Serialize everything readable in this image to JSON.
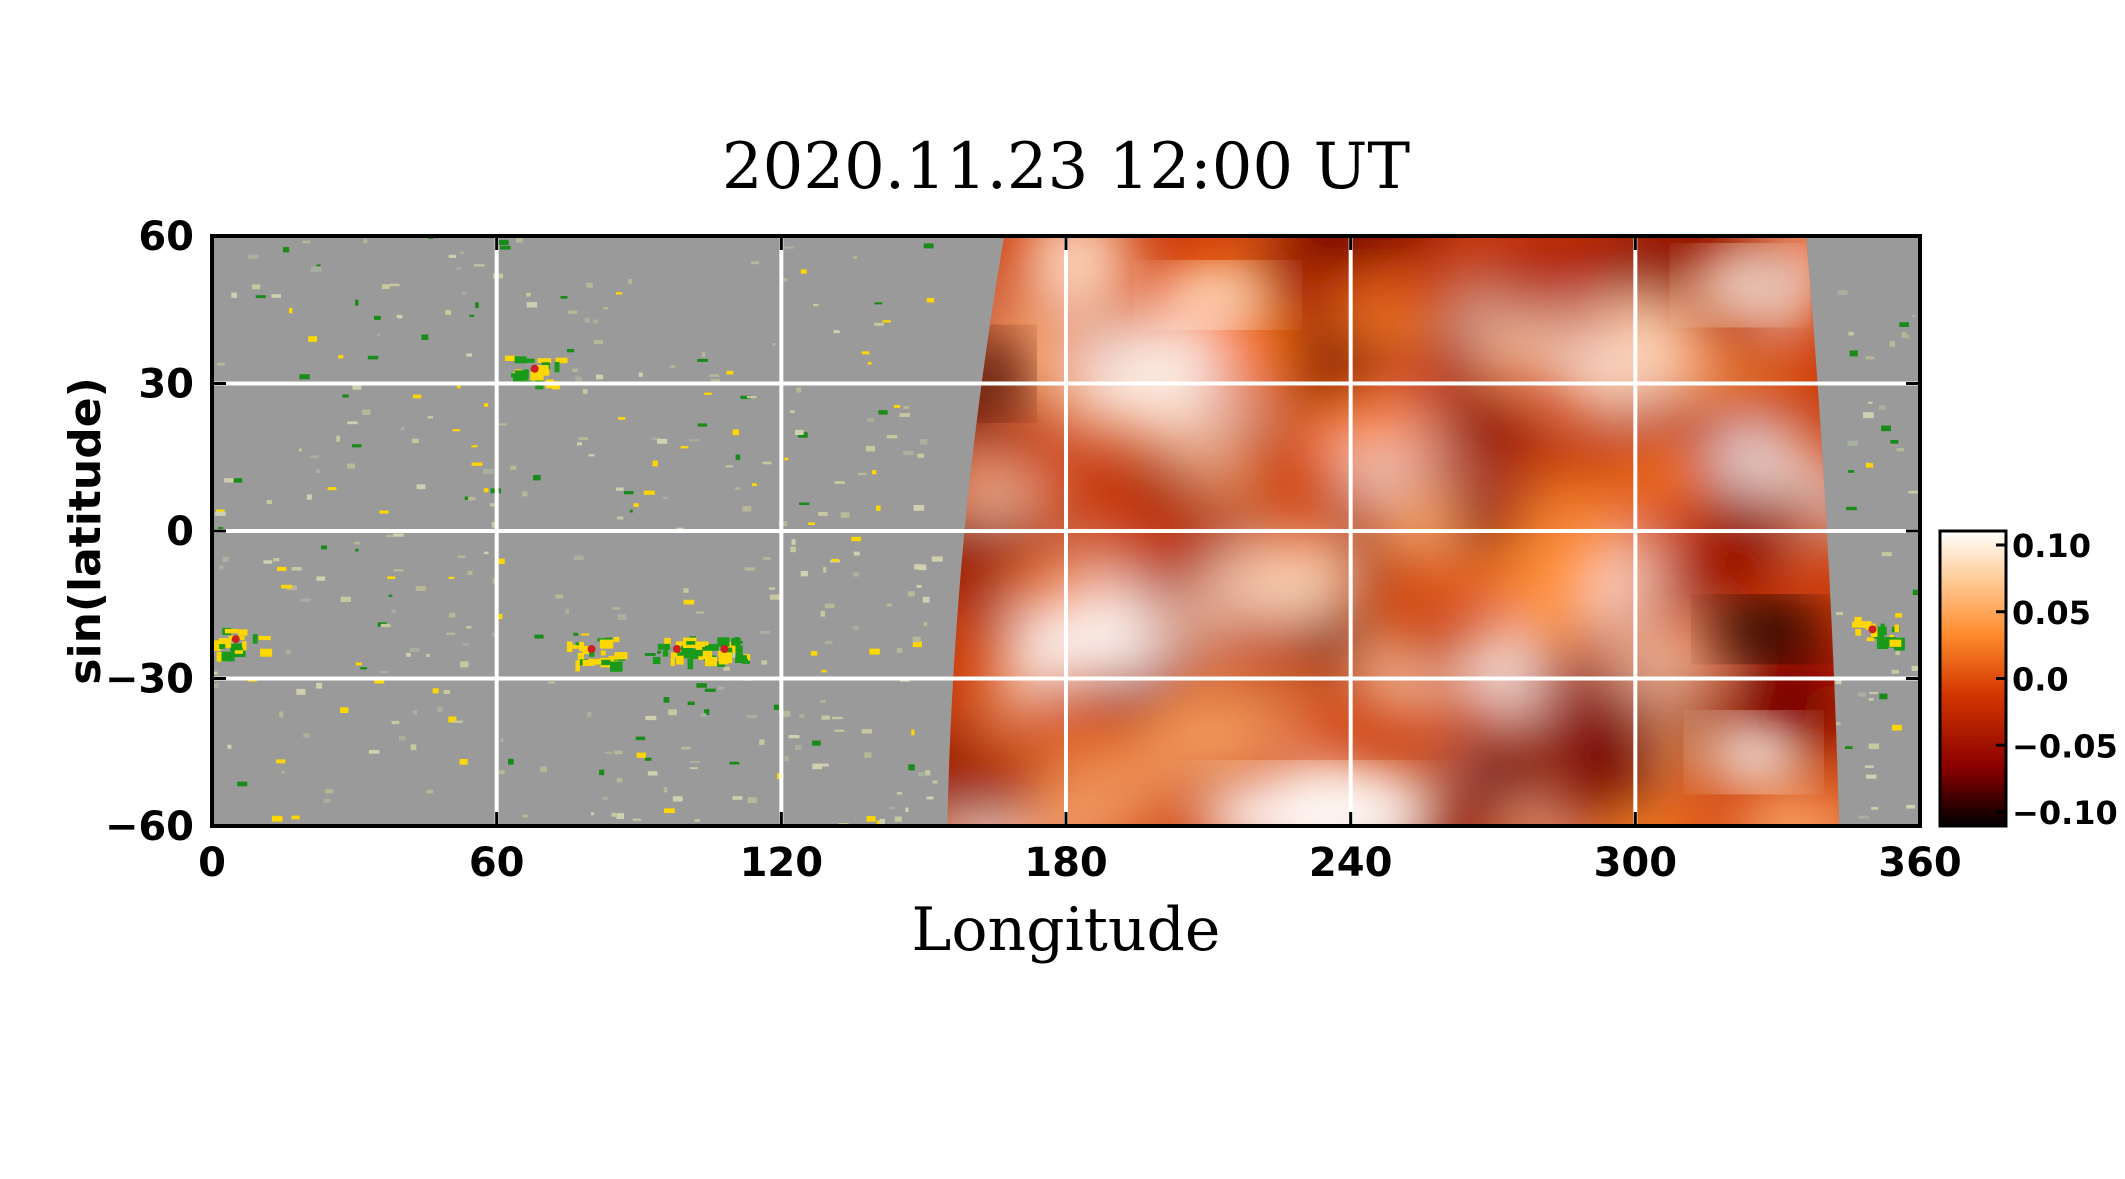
{
  "chart_data": {
    "type": "heatmap",
    "title": "2020.11.23 12:00 UT",
    "xlabel": "Longitude",
    "ylabel": "sin(latitude)",
    "xlim": [
      0,
      360
    ],
    "ylim": [
      -60,
      60
    ],
    "xticks": [
      "0",
      "60",
      "120",
      "180",
      "240",
      "300",
      "360"
    ],
    "yticks": [
      "60",
      "30",
      "0",
      "−30",
      "−60"
    ],
    "grid": true,
    "far_side_region": {
      "lon_range": [
        155,
        340
      ],
      "description_colors": [
        "#000000",
        "#8b0000",
        "#cc3300",
        "#ff7f1a",
        "#ffb070",
        "#ffffff"
      ]
    },
    "near_side_background": "#9a9a9a",
    "active_regions": [
      {
        "lon": 68,
        "lat": 33
      },
      {
        "lon": 80,
        "lat": -24
      },
      {
        "lon": 98,
        "lat": -24
      },
      {
        "lon": 108,
        "lat": -24
      },
      {
        "lon": 5,
        "lat": -22
      },
      {
        "lon": 350,
        "lat": -20
      }
    ],
    "colorbar": {
      "ticks": [
        "0.10",
        "0.05",
        "0.0",
        "−0.05",
        "−0.10"
      ],
      "range": [
        -0.1,
        0.1
      ],
      "colors": [
        "#000000",
        "#8b0000",
        "#d43800",
        "#ff8c2e",
        "#ffd0a0",
        "#ffffff"
      ]
    }
  }
}
